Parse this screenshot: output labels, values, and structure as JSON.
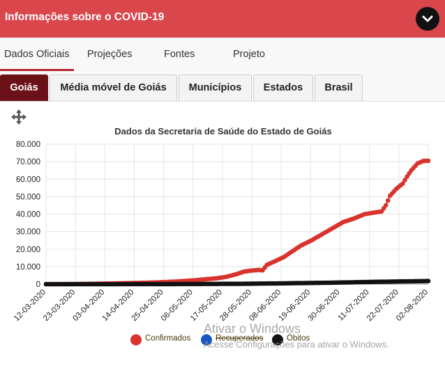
{
  "header": {
    "title": "Informações sobre o COVID-19"
  },
  "top_tabs": [
    {
      "label": "Dados Oficiais"
    },
    {
      "label": "Projeções"
    },
    {
      "label": "Fontes"
    },
    {
      "label": "Projeto"
    }
  ],
  "sub_tabs": [
    {
      "label": "Goiás"
    },
    {
      "label": "Média móvel de Goiás"
    },
    {
      "label": "Municípios"
    },
    {
      "label": "Estados"
    },
    {
      "label": "Brasil"
    }
  ],
  "colors": {
    "header": "#d9474d",
    "active_tab": "#6b1218",
    "confirmados": "#d9332e",
    "recuperados": "#1657c2",
    "obitos": "#111111"
  },
  "icons": {
    "toggle": "chevron-down-icon",
    "move": "move-arrows-icon"
  },
  "chart_data": {
    "type": "line",
    "title": "Dados da Secretaria de Saúde do Estado de Goiás",
    "xlabel": "",
    "ylabel": "",
    "ylim": [
      0,
      80000
    ],
    "y_ticks": [
      "80.000",
      "70.000",
      "60.000",
      "50.000",
      "40.000",
      "30.000",
      "20.000",
      "10.000",
      "0"
    ],
    "x_ticks": [
      "12-03-2020",
      "23-03-2020",
      "03-04-2020",
      "14-04-2020",
      "25-04-2020",
      "06-05-2020",
      "17-05-2020",
      "28-05-2020",
      "08-06-2020",
      "19-06-2020",
      "30-06-2020",
      "11-07-2020",
      "22-07-2020",
      "02-08-2020"
    ],
    "grid": true,
    "legend_position": "bottom",
    "series": [
      {
        "name": "Confirmados",
        "points": [
          [
            0,
            0
          ],
          [
            10,
            20
          ],
          [
            20,
            150
          ],
          [
            30,
            350
          ],
          [
            40,
            600
          ],
          [
            50,
            900
          ],
          [
            60,
            1400
          ],
          [
            70,
            2200
          ],
          [
            75,
            2800
          ],
          [
            80,
            3300
          ],
          [
            85,
            4200
          ],
          [
            90,
            5800
          ],
          [
            93,
            7100
          ],
          [
            97,
            7800
          ],
          [
            100,
            8100
          ],
          [
            102,
            7900
          ],
          [
            104,
            11000
          ],
          [
            108,
            13200
          ],
          [
            112,
            15500
          ],
          [
            116,
            18800
          ],
          [
            120,
            22000
          ],
          [
            125,
            25000
          ],
          [
            130,
            28500
          ],
          [
            135,
            32000
          ],
          [
            140,
            35500
          ],
          [
            145,
            37500
          ],
          [
            150,
            40000
          ],
          [
            155,
            41000
          ],
          [
            158,
            41500
          ],
          [
            160,
            45000
          ],
          [
            162,
            50500
          ],
          [
            165,
            54500
          ],
          [
            168,
            57500
          ],
          [
            170,
            61500
          ],
          [
            172,
            65000
          ],
          [
            175,
            69000
          ],
          [
            178,
            70500
          ],
          [
            180,
            70500
          ]
        ]
      },
      {
        "name": "Recuperados",
        "hidden": true,
        "points": []
      },
      {
        "name": "Óbitos",
        "points": [
          [
            0,
            0
          ],
          [
            50,
            30
          ],
          [
            70,
            80
          ],
          [
            90,
            180
          ],
          [
            100,
            300
          ],
          [
            110,
            420
          ],
          [
            120,
            600
          ],
          [
            130,
            750
          ],
          [
            140,
            950
          ],
          [
            150,
            1200
          ],
          [
            160,
            1400
          ],
          [
            170,
            1600
          ],
          [
            180,
            1750
          ]
        ]
      }
    ]
  },
  "watermark": {
    "line1": "Ativar o Windows",
    "line2": "Acesse Configurações para ativar o Windows."
  }
}
